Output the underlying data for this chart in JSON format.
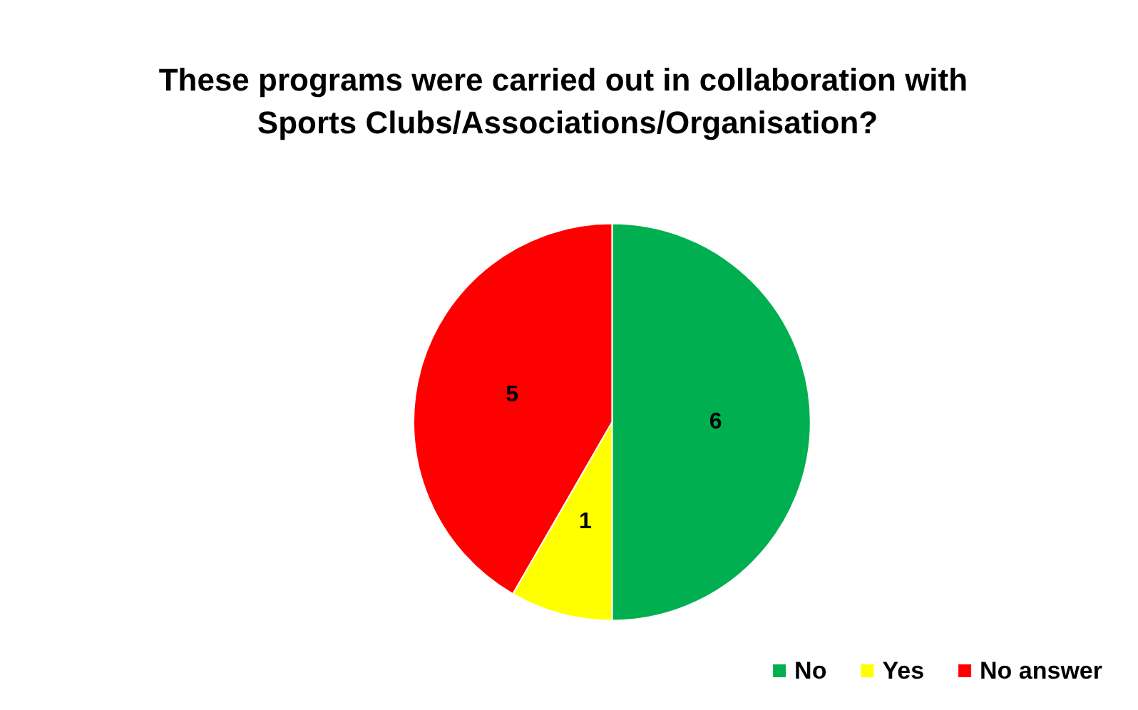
{
  "chart_data": {
    "type": "pie",
    "title": "These programs were carried out in collaboration with Sports Clubs/Associations/Organisation?",
    "categories": [
      "No",
      "Yes",
      "No answer"
    ],
    "values": [
      6,
      1,
      5
    ],
    "colors": [
      "#00b050",
      "#ffff00",
      "#ff0000"
    ],
    "data_labels": true,
    "legend": "bottom right"
  }
}
